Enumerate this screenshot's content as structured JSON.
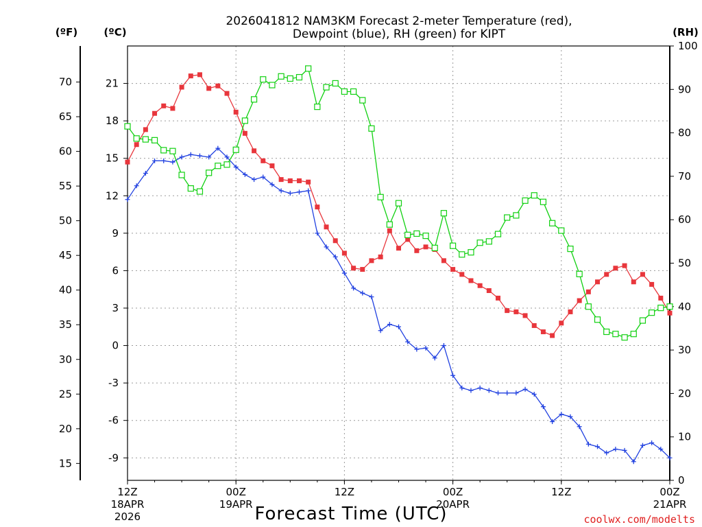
{
  "chart_data": {
    "type": "line",
    "title_line1": "2026041812 NAM3KM Forecast 2-meter Temperature (red),",
    "title_line2": "Dewpoint (blue), RH (green) for KIPT",
    "xlabel": "Forecast Time (UTC)",
    "credit": "coolwx.com/modelts",
    "unit_f": "(ºF)",
    "unit_c": "(ºC)",
    "unit_rh": "(RH)",
    "x_range_hours": [
      0,
      60
    ],
    "celsius_range": [
      -10.8,
      24
    ],
    "rh_range": [
      0,
      100
    ],
    "fahrenheit_ticks": [
      "15",
      "20",
      "25",
      "30",
      "35",
      "40",
      "45",
      "50",
      "55",
      "60",
      "65",
      "70"
    ],
    "celsius_ticks": [
      "-9",
      "-6",
      "-3",
      "0",
      "3",
      "6",
      "9",
      "12",
      "15",
      "18",
      "21"
    ],
    "rh_ticks": [
      "0",
      "10",
      "20",
      "30",
      "40",
      "50",
      "60",
      "70",
      "80",
      "90",
      "100"
    ],
    "x_ticks": [
      {
        "hour": 0,
        "line1": "12Z",
        "line2": "18APR",
        "line3": "2026"
      },
      {
        "hour": 12,
        "line1": "00Z",
        "line2": "19APR",
        "line3": ""
      },
      {
        "hour": 24,
        "line1": "12Z",
        "line2": "",
        "line3": ""
      },
      {
        "hour": 36,
        "line1": "00Z",
        "line2": "20APR",
        "line3": ""
      },
      {
        "hour": 48,
        "line1": "12Z",
        "line2": "",
        "line3": ""
      },
      {
        "hour": 60,
        "line1": "00Z",
        "line2": "21APR",
        "line3": ""
      }
    ],
    "series": [
      {
        "name": "2-meter Temperature",
        "units": "C",
        "color": "#e8363c",
        "marker": "filled-square",
        "values": [
          14.7,
          16.1,
          17.3,
          18.6,
          19.2,
          19.0,
          20.7,
          21.6,
          21.7,
          20.6,
          20.8,
          20.2,
          18.7,
          17.0,
          15.6,
          14.8,
          14.4,
          13.3,
          13.2,
          13.2,
          13.1,
          11.1,
          9.5,
          8.4,
          7.4,
          6.2,
          6.1,
          6.8,
          7.1,
          9.2,
          7.8,
          8.5,
          7.6,
          7.9,
          7.7,
          6.8,
          6.1,
          5.7,
          5.2,
          4.8,
          4.4,
          3.8,
          2.8,
          2.7,
          2.4,
          1.6,
          1.1,
          0.8,
          1.8,
          2.7,
          3.6,
          4.3,
          5.1,
          5.7,
          6.2,
          6.4,
          5.1,
          5.7,
          4.9,
          3.8,
          2.6
        ]
      },
      {
        "name": "Dewpoint",
        "units": "C",
        "color": "#2040e0",
        "marker": "plus",
        "values": [
          11.7,
          12.8,
          13.8,
          14.8,
          14.8,
          14.7,
          15.1,
          15.3,
          15.2,
          15.1,
          15.8,
          15.1,
          14.3,
          13.7,
          13.3,
          13.5,
          12.9,
          12.4,
          12.2,
          12.3,
          12.4,
          9.0,
          7.9,
          7.1,
          5.8,
          4.6,
          4.2,
          3.9,
          1.2,
          1.7,
          1.5,
          0.3,
          -0.3,
          -0.2,
          -1.0,
          0.0,
          -2.4,
          -3.4,
          -3.6,
          -3.4,
          -3.6,
          -3.8,
          -3.8,
          -3.8,
          -3.5,
          -3.9,
          -4.9,
          -6.1,
          -5.5,
          -5.7,
          -6.5,
          -7.9,
          -8.1,
          -8.6,
          -8.3,
          -8.4,
          -9.3,
          -8.0,
          -7.8,
          -8.3,
          -9.0
        ]
      },
      {
        "name": "RH",
        "units": "%",
        "color": "#10d010",
        "marker": "open-square",
        "values": [
          81.5,
          78.7,
          78.5,
          78.3,
          76.0,
          75.8,
          70.3,
          67.2,
          66.5,
          70.8,
          72.4,
          72.7,
          76.1,
          82.8,
          87.7,
          92.3,
          91.0,
          93.0,
          92.5,
          92.8,
          94.8,
          86.0,
          90.5,
          91.4,
          89.5,
          89.5,
          87.5,
          81.0,
          65.2,
          58.9,
          63.8,
          56.5,
          56.8,
          56.3,
          53.5,
          61.5,
          54.0,
          52.0,
          52.5,
          54.7,
          55.0,
          56.7,
          60.5,
          61.0,
          64.4,
          65.6,
          64.1,
          59.2,
          57.5,
          53.3,
          47.5,
          40.0,
          37.0,
          34.2,
          33.7,
          32.9,
          33.7,
          36.8,
          38.6,
          39.7,
          40.0
        ]
      }
    ]
  }
}
